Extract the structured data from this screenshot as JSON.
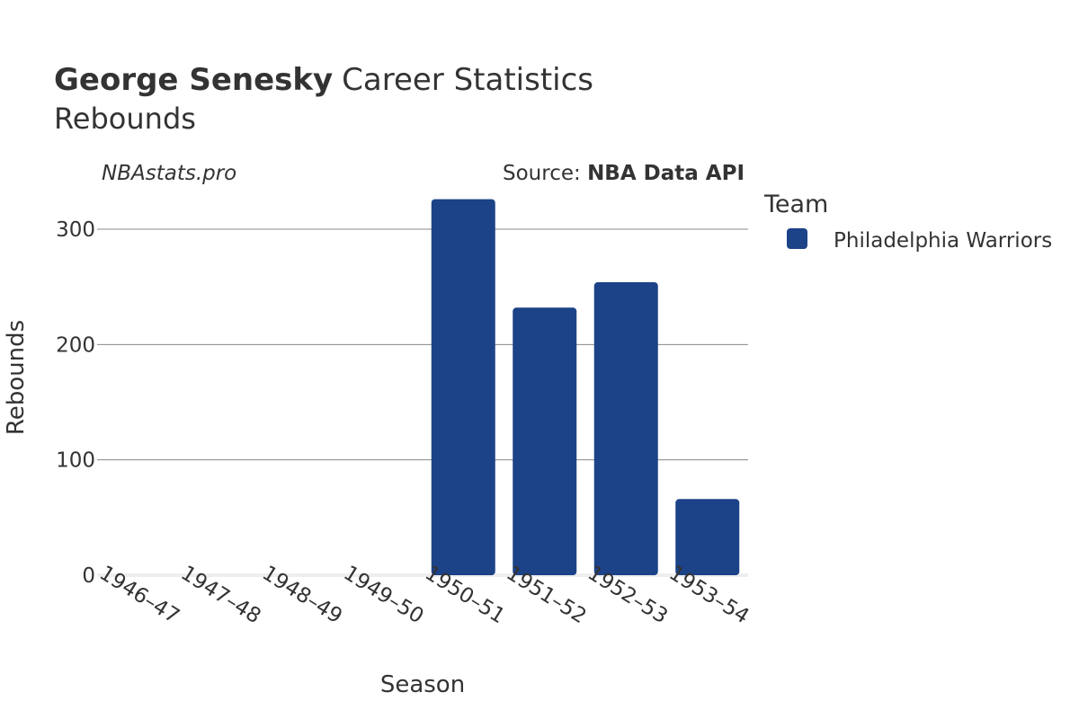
{
  "header": {
    "player_name": "George Senesky",
    "title_suffix": "Career Statistics",
    "subtitle": "Rebounds"
  },
  "watermark": "NBAstats.pro",
  "source": {
    "prefix": "Source: ",
    "name": "NBA Data API"
  },
  "legend": {
    "title": "Team",
    "placement": "right"
  },
  "colors": {
    "bar": "#1c4288",
    "grid": "#888888",
    "zero_line": "#eeeeee",
    "text": "#333333"
  },
  "chart_data": {
    "type": "bar",
    "title": "George Senesky Career Statistics",
    "subtitle": "Rebounds",
    "xlabel": "Season",
    "ylabel": "Rebounds",
    "categories": [
      "1946–47",
      "1947–48",
      "1948–49",
      "1949–50",
      "1950–51",
      "1951–52",
      "1952–53",
      "1953–54"
    ],
    "series": [
      {
        "name": "Philadelphia Warriors",
        "color": "#1c4288",
        "values": [
          null,
          null,
          null,
          null,
          326,
          232,
          254,
          66
        ]
      }
    ],
    "yticks": [
      0,
      100,
      200,
      300
    ],
    "ylim": [
      0,
      345
    ],
    "grid": true
  }
}
